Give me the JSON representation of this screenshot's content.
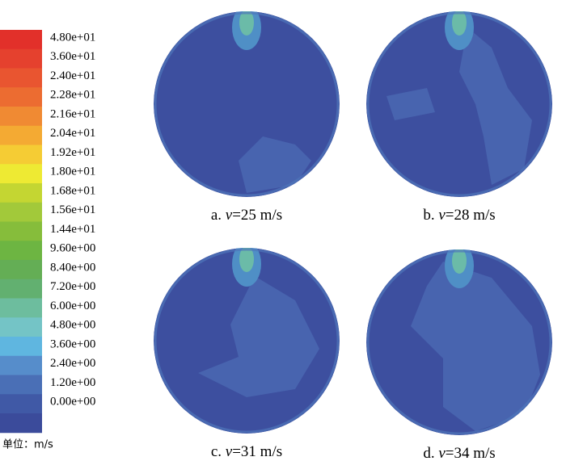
{
  "legend": {
    "items": [
      {
        "label": "4.80e+01",
        "color": "#e2302a"
      },
      {
        "label": "3.60e+01",
        "color": "#e5412e"
      },
      {
        "label": "2.40e+01",
        "color": "#e95530"
      },
      {
        "label": "2.28e+01",
        "color": "#ec6c31"
      },
      {
        "label": "2.16e+01",
        "color": "#f08a33"
      },
      {
        "label": "2.04e+01",
        "color": "#f4aa33"
      },
      {
        "label": "1.92e+01",
        "color": "#f5cc34"
      },
      {
        "label": "1.80e+01",
        "color": "#eeea33"
      },
      {
        "label": "1.68e+01",
        "color": "#c4d632"
      },
      {
        "label": "1.56e+01",
        "color": "#a2c93a"
      },
      {
        "label": "1.44e+01",
        "color": "#86bd3b"
      },
      {
        "label": "9.60e+00",
        "color": "#6db542"
      },
      {
        "label": "8.40e+00",
        "color": "#64ae55"
      },
      {
        "label": "7.20e+00",
        "color": "#62b070"
      },
      {
        "label": "6.00e+00",
        "color": "#6dbd9e"
      },
      {
        "label": "4.80e+00",
        "color": "#74c4c6"
      },
      {
        "label": "3.60e+00",
        "color": "#5fb6e0"
      },
      {
        "label": "2.40e+00",
        "color": "#568dcb"
      },
      {
        "label": "1.20e+00",
        "color": "#4a6fb6"
      },
      {
        "label": "0.00e+00",
        "color": "#4059a6"
      },
      {
        "label": "",
        "color": "#3b4b9b"
      }
    ],
    "unit": "单位：m/s"
  },
  "panels": [
    {
      "letter": "a.",
      "var": "v",
      "value": "=25 m/s"
    },
    {
      "letter": "b.",
      "var": "v",
      "value": "=28 m/s"
    },
    {
      "letter": "c.",
      "var": "v",
      "value": "=31 m/s"
    },
    {
      "letter": "d.",
      "var": "v",
      "value": "=34 m/s"
    }
  ]
}
